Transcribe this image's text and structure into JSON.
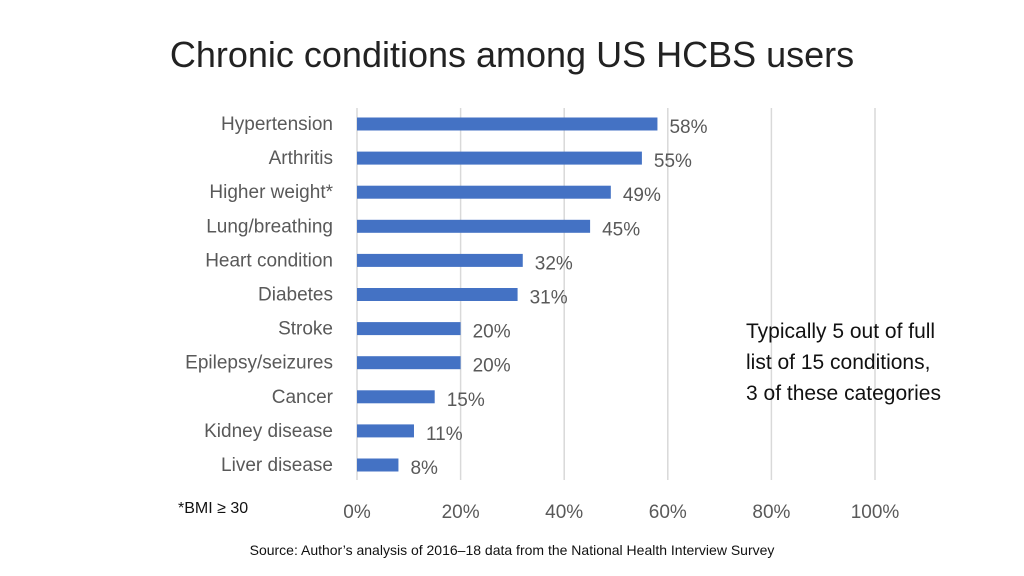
{
  "title": "Chronic conditions among US HCBS users",
  "annotation": {
    "lines": [
      "Typically 5 out of full",
      "list of 15 conditions,",
      "3 of these categories"
    ]
  },
  "footnote": "*BMI ≥ 30",
  "source": "Source: Author’s analysis of 2016–18 data from the National Health Interview Survey",
  "colors": {
    "bar": "#4472C4",
    "grid": "#d9d9d9",
    "text": "#595959"
  },
  "chart_data": {
    "type": "bar",
    "orientation": "horizontal",
    "categories": [
      "Hypertension",
      "Arthritis",
      "Higher weight*",
      "Lung/breathing",
      "Heart condition",
      "Diabetes",
      "Stroke",
      "Epilepsy/seizures",
      "Cancer",
      "Kidney disease",
      "Liver disease"
    ],
    "values": [
      58,
      55,
      49,
      45,
      32,
      31,
      20,
      20,
      15,
      11,
      8
    ],
    "data_labels": [
      "58%",
      "55%",
      "49%",
      "45%",
      "32%",
      "31%",
      "20%",
      "20%",
      "15%",
      "11%",
      "8%"
    ],
    "xlim": [
      0,
      100
    ],
    "xticks": [
      0,
      20,
      40,
      60,
      80,
      100
    ],
    "xtick_labels": [
      "0%",
      "20%",
      "40%",
      "60%",
      "80%",
      "100%"
    ],
    "grid": true,
    "legend": "none"
  }
}
